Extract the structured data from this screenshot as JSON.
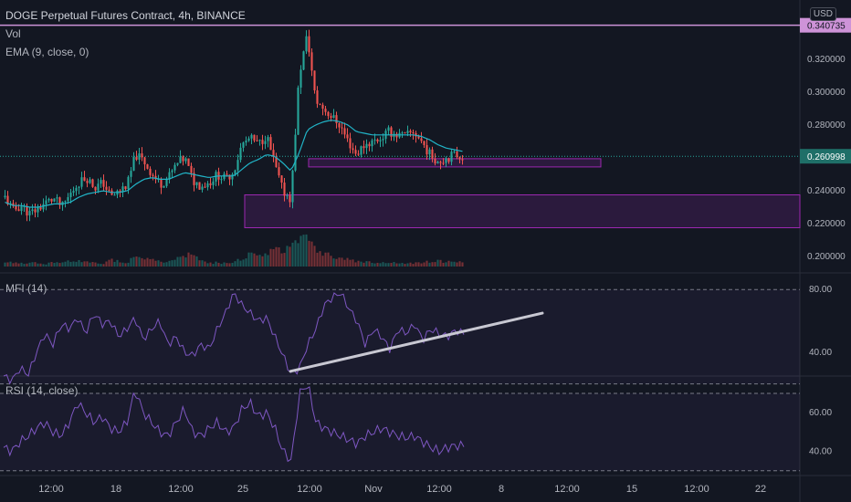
{
  "header": {
    "title": "DOGE Perpetual Futures Contract, 4h, BINANCE",
    "vol_label": "Vol",
    "ema_label": "EMA (9, close, 0)",
    "currency": "USD"
  },
  "panels": {
    "mfi_label": "MFI (14)",
    "rsi_label": "RSI (14, close)"
  },
  "colors": {
    "background": "#131722",
    "up": "#26a69a",
    "down": "#ef5350",
    "ema": "#21b4c7",
    "oscillator": "#7e57c2",
    "zone": "#4a1f5f",
    "zone_border": "#9c27b0",
    "top_line": "#ce93d8",
    "trend": "#c8c8d2",
    "price_tag": "#1f6f68"
  },
  "chart_data": [
    {
      "type": "candlestick",
      "name": "price",
      "yticks": [
        0.2,
        0.22,
        0.24,
        0.26,
        0.28,
        0.3,
        0.32
      ],
      "ytick_labels": [
        "0.200000",
        "0.220000",
        "0.240000",
        "0.260000",
        "0.280000",
        "0.300000",
        "0.320000"
      ],
      "ylim": [
        0.195,
        0.345
      ],
      "current_price": 0.260998,
      "current_price_label": "0.260998",
      "top_line_value": 0.340735,
      "top_line_label": "0.340735",
      "zones": [
        {
          "x_start": "Oct 28",
          "x_end": "beyond Nov 15",
          "y_low": 0.2175,
          "y_high": 0.2375
        },
        {
          "x_start": "Oct 29",
          "x_end": "Nov 12",
          "y_low": 0.2545,
          "y_high": 0.2595
        }
      ],
      "xtick_labels": [
        "12:00",
        "18",
        "12:00",
        "25",
        "12:00",
        "Nov",
        "12:00",
        "8",
        "12:00",
        "15",
        "12:00",
        "22"
      ],
      "close_path": [
        0.236,
        0.228,
        0.231,
        0.226,
        0.229,
        0.233,
        0.235,
        0.23,
        0.238,
        0.245,
        0.248,
        0.242,
        0.245,
        0.236,
        0.24,
        0.244,
        0.262,
        0.258,
        0.25,
        0.244,
        0.248,
        0.256,
        0.26,
        0.246,
        0.243,
        0.245,
        0.25,
        0.247,
        0.252,
        0.268,
        0.272,
        0.268,
        0.274,
        0.256,
        0.24,
        0.235,
        0.31,
        0.335,
        0.295,
        0.29,
        0.285,
        0.28,
        0.27,
        0.262,
        0.268,
        0.27,
        0.272,
        0.276,
        0.274,
        0.273,
        0.276,
        0.27,
        0.262,
        0.258,
        0.26,
        0.262,
        0.261
      ],
      "ema_path": [
        0.233,
        0.231,
        0.231,
        0.23,
        0.23,
        0.231,
        0.232,
        0.232,
        0.233,
        0.236,
        0.238,
        0.239,
        0.24,
        0.239,
        0.239,
        0.24,
        0.244,
        0.247,
        0.248,
        0.247,
        0.247,
        0.249,
        0.251,
        0.25,
        0.249,
        0.248,
        0.249,
        0.249,
        0.249,
        0.253,
        0.257,
        0.259,
        0.262,
        0.261,
        0.257,
        0.252,
        0.263,
        0.277,
        0.28,
        0.282,
        0.283,
        0.282,
        0.28,
        0.276,
        0.275,
        0.274,
        0.274,
        0.274,
        0.274,
        0.274,
        0.274,
        0.273,
        0.271,
        0.268,
        0.266,
        0.265,
        0.264
      ],
      "volume_path": [
        0.15,
        0.1,
        0.1,
        0.12,
        0.1,
        0.08,
        0.12,
        0.1,
        0.18,
        0.15,
        0.12,
        0.1,
        0.08,
        0.2,
        0.15,
        0.12,
        0.35,
        0.25,
        0.2,
        0.15,
        0.12,
        0.2,
        0.3,
        0.4,
        0.15,
        0.1,
        0.12,
        0.1,
        0.1,
        0.25,
        0.35,
        0.3,
        0.3,
        0.5,
        0.45,
        0.6,
        1.0,
        0.9,
        0.5,
        0.4,
        0.3,
        0.25,
        0.2,
        0.15,
        0.15,
        0.12,
        0.1,
        0.12,
        0.1,
        0.08,
        0.1,
        0.12,
        0.15,
        0.18,
        0.12,
        0.15,
        0.1
      ]
    },
    {
      "type": "line",
      "name": "MFI (14)",
      "ylim": [
        25,
        90
      ],
      "bands": [
        80,
        20
      ],
      "tick_labels": [
        "80.00",
        "40.00"
      ],
      "ticks": [
        80,
        40
      ],
      "values": [
        25,
        22,
        30,
        26,
        40,
        52,
        45,
        58,
        55,
        62,
        52,
        65,
        58,
        60,
        50,
        55,
        62,
        48,
        55,
        60,
        45,
        50,
        40,
        38,
        45,
        42,
        55,
        65,
        78,
        70,
        65,
        60,
        62,
        50,
        38,
        26,
        30,
        45,
        55,
        70,
        75,
        78,
        68,
        60,
        45,
        55,
        50,
        42,
        55,
        52,
        58,
        48,
        55,
        52,
        50,
        54,
        52
      ],
      "trendline": [
        28,
        65
      ]
    },
    {
      "type": "line",
      "name": "RSI (14, close)",
      "ylim": [
        28,
        78
      ],
      "bands": [
        70,
        30
      ],
      "tick_labels": [
        "60.00",
        "40.00"
      ],
      "ticks": [
        60,
        40
      ],
      "values": [
        42,
        40,
        45,
        48,
        52,
        55,
        50,
        48,
        55,
        65,
        60,
        55,
        58,
        52,
        50,
        55,
        72,
        60,
        55,
        50,
        48,
        55,
        62,
        50,
        48,
        52,
        55,
        50,
        52,
        62,
        65,
        58,
        60,
        52,
        40,
        35,
        70,
        75,
        55,
        52,
        50,
        48,
        46,
        44,
        48,
        50,
        52,
        50,
        48,
        47,
        48,
        45,
        42,
        40,
        42,
        43,
        43
      ]
    }
  ]
}
